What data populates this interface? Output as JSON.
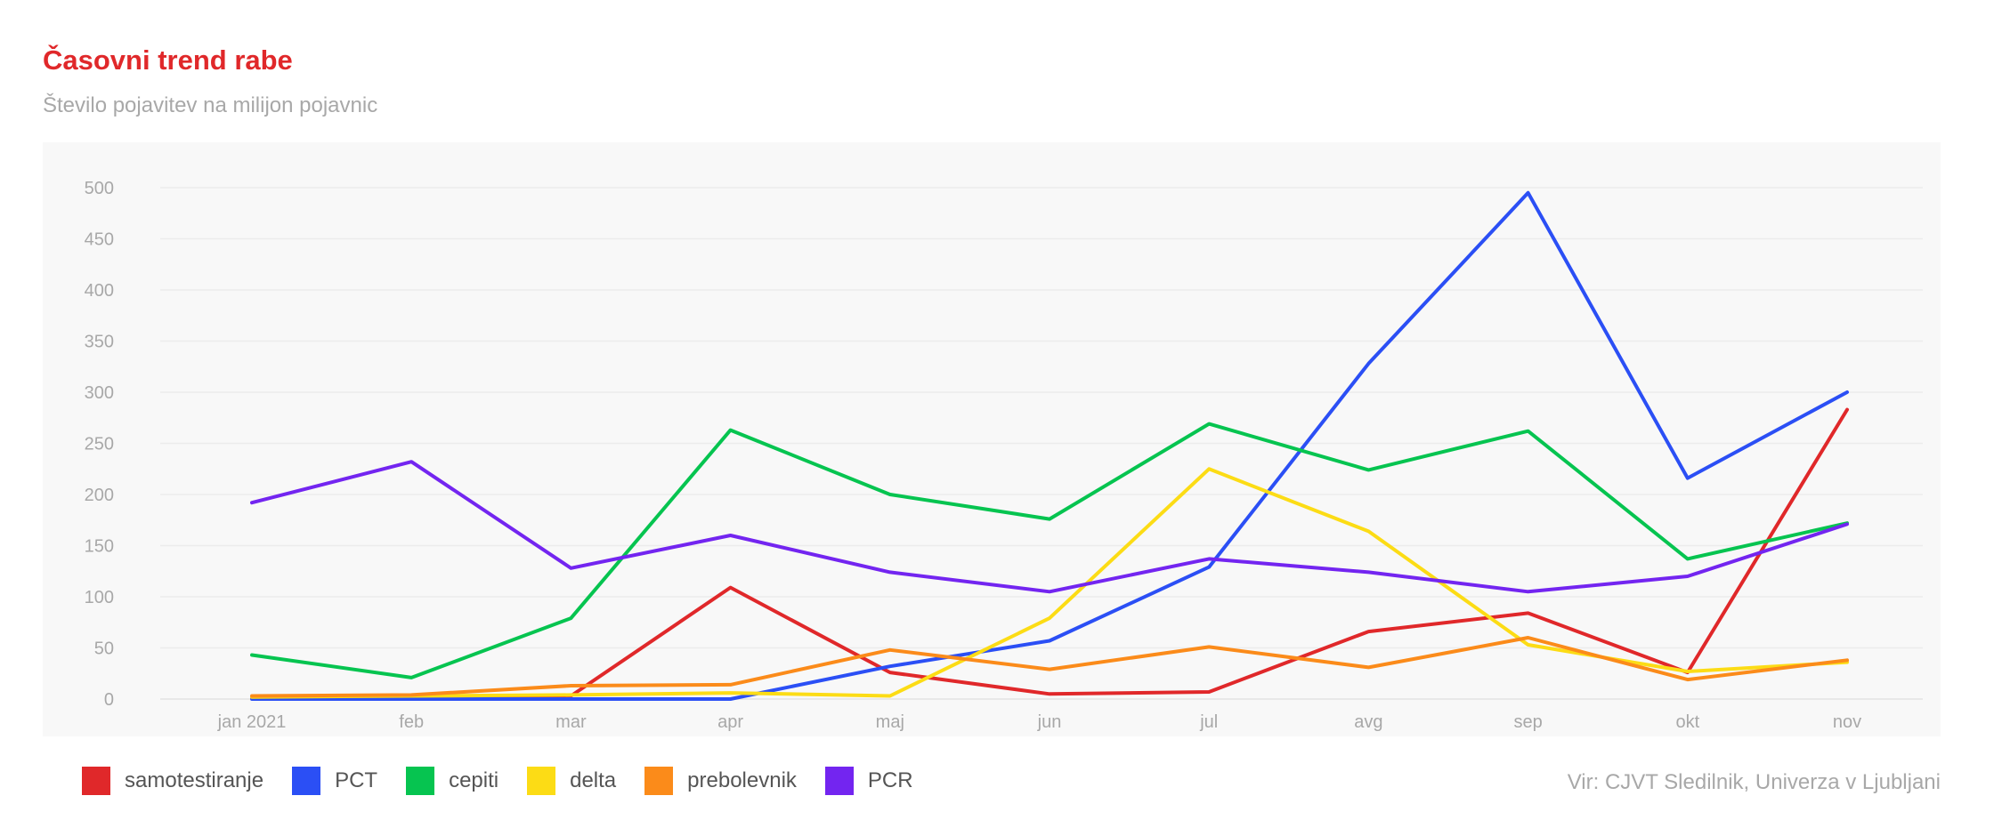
{
  "header": {
    "title": "Časovni trend rabe",
    "subtitle": "Število pojavitev na milijon pojavnic"
  },
  "source": "Vir: CJVT Sledilnik, Univerza v Ljubljani",
  "chart_data": {
    "type": "line",
    "title": "Časovni trend rabe",
    "subtitle": "Število pojavitev na milijon pojavnic",
    "categories": [
      "jan 2021",
      "feb",
      "mar",
      "apr",
      "maj",
      "jun",
      "jul",
      "avg",
      "sep",
      "okt",
      "nov"
    ],
    "ylim": [
      0,
      500
    ],
    "yticks": [
      0,
      50,
      100,
      150,
      200,
      250,
      300,
      350,
      400,
      450,
      500
    ],
    "grid": true,
    "legend_position": "bottom-left",
    "series": [
      {
        "name": "samotestiranje",
        "color": "#e0282a",
        "values": [
          2,
          3,
          3,
          109,
          26,
          5,
          7,
          66,
          84,
          26,
          283
        ]
      },
      {
        "name": "PCT",
        "color": "#2b4ff5",
        "values": [
          0,
          0,
          0,
          0,
          32,
          57,
          129,
          328,
          495,
          216,
          300
        ]
      },
      {
        "name": "cepiti",
        "color": "#06c450",
        "values": [
          43,
          21,
          79,
          263,
          200,
          176,
          269,
          224,
          262,
          137,
          172
        ]
      },
      {
        "name": "delta",
        "color": "#fcdc15",
        "values": [
          2,
          3,
          4,
          6,
          3,
          79,
          225,
          164,
          53,
          27,
          36
        ]
      },
      {
        "name": "prebolevnik",
        "color": "#fb8b1a",
        "values": [
          3,
          4,
          13,
          14,
          48,
          29,
          51,
          31,
          60,
          19,
          38
        ]
      },
      {
        "name": "PCR",
        "color": "#7325f0",
        "values": [
          192,
          232,
          128,
          160,
          124,
          105,
          137,
          124,
          105,
          120,
          171
        ]
      }
    ]
  }
}
